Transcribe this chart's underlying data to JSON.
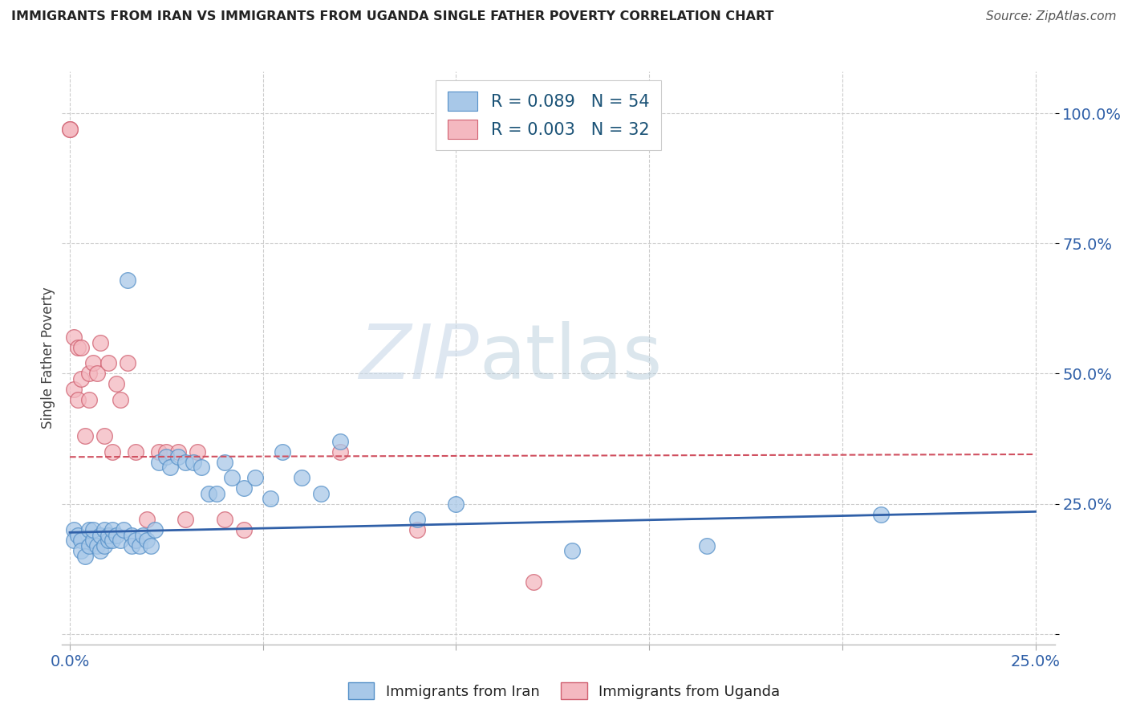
{
  "title": "IMMIGRANTS FROM IRAN VS IMMIGRANTS FROM UGANDA SINGLE FATHER POVERTY CORRELATION CHART",
  "source": "Source: ZipAtlas.com",
  "ylabel": "Single Father Poverty",
  "yticks": [
    "",
    "25.0%",
    "50.0%",
    "75.0%",
    "100.0%"
  ],
  "ytick_vals": [
    0.0,
    0.25,
    0.5,
    0.75,
    1.0
  ],
  "xtick_labels": [
    "0.0%",
    "",
    "",
    "",
    "",
    "25.0%"
  ],
  "xtick_vals": [
    0.0,
    0.05,
    0.1,
    0.15,
    0.2,
    0.25
  ],
  "xrange": [
    -0.002,
    0.255
  ],
  "yrange": [
    -0.02,
    1.08
  ],
  "legend_iran": "R = 0.089   N = 54",
  "legend_uganda": "R = 0.003   N = 32",
  "iran_color": "#a8c8e8",
  "uganda_color": "#f4b8c0",
  "iran_edge_color": "#5590c8",
  "uganda_edge_color": "#d06070",
  "iran_line_color": "#3060a8",
  "uganda_line_color": "#d05060",
  "watermark_zip": "ZIP",
  "watermark_atlas": "atlas",
  "iran_points_x": [
    0.001,
    0.001,
    0.002,
    0.003,
    0.003,
    0.004,
    0.005,
    0.005,
    0.006,
    0.006,
    0.007,
    0.008,
    0.008,
    0.009,
    0.009,
    0.01,
    0.01,
    0.011,
    0.011,
    0.012,
    0.013,
    0.014,
    0.015,
    0.016,
    0.016,
    0.017,
    0.018,
    0.019,
    0.02,
    0.021,
    0.022,
    0.023,
    0.025,
    0.026,
    0.028,
    0.03,
    0.032,
    0.034,
    0.036,
    0.038,
    0.04,
    0.042,
    0.045,
    0.048,
    0.052,
    0.055,
    0.06,
    0.065,
    0.07,
    0.09,
    0.1,
    0.13,
    0.165,
    0.21
  ],
  "iran_points_y": [
    0.2,
    0.18,
    0.19,
    0.18,
    0.16,
    0.15,
    0.2,
    0.17,
    0.18,
    0.2,
    0.17,
    0.19,
    0.16,
    0.2,
    0.17,
    0.18,
    0.19,
    0.18,
    0.2,
    0.19,
    0.18,
    0.2,
    0.68,
    0.19,
    0.17,
    0.18,
    0.17,
    0.19,
    0.18,
    0.17,
    0.2,
    0.33,
    0.34,
    0.32,
    0.34,
    0.33,
    0.33,
    0.32,
    0.27,
    0.27,
    0.33,
    0.3,
    0.28,
    0.3,
    0.26,
    0.35,
    0.3,
    0.27,
    0.37,
    0.22,
    0.25,
    0.16,
    0.17,
    0.23
  ],
  "uganda_points_x": [
    0.0,
    0.0,
    0.001,
    0.001,
    0.002,
    0.002,
    0.003,
    0.003,
    0.004,
    0.005,
    0.005,
    0.006,
    0.007,
    0.008,
    0.009,
    0.01,
    0.011,
    0.012,
    0.013,
    0.015,
    0.017,
    0.02,
    0.023,
    0.025,
    0.028,
    0.03,
    0.033,
    0.04,
    0.045,
    0.07,
    0.09,
    0.12
  ],
  "uganda_points_y": [
    0.97,
    0.97,
    0.57,
    0.47,
    0.55,
    0.45,
    0.55,
    0.49,
    0.38,
    0.5,
    0.45,
    0.52,
    0.5,
    0.56,
    0.38,
    0.52,
    0.35,
    0.48,
    0.45,
    0.52,
    0.35,
    0.22,
    0.35,
    0.35,
    0.35,
    0.22,
    0.35,
    0.22,
    0.2,
    0.35,
    0.2,
    0.1
  ],
  "iran_trend_x": [
    0.0,
    0.25
  ],
  "iran_trend_y": [
    0.195,
    0.235
  ],
  "uganda_trend_x": [
    0.0,
    0.25
  ],
  "uganda_trend_y": [
    0.34,
    0.345
  ]
}
